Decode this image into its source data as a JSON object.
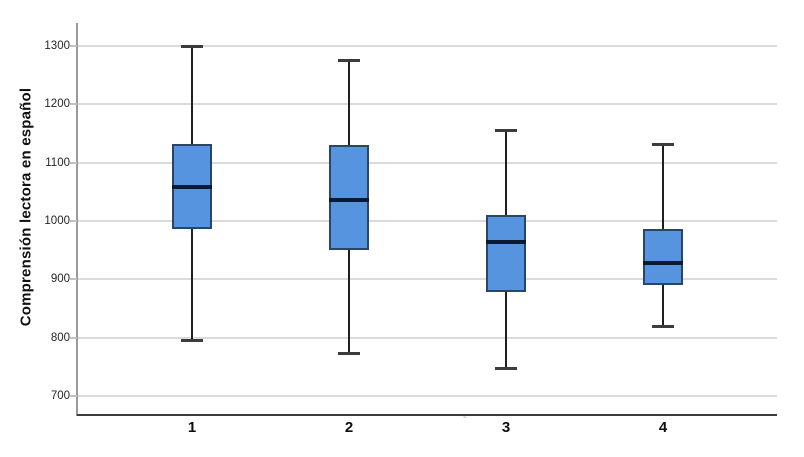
{
  "figure": {
    "background": "#ffffff",
    "stray_mark": "`"
  },
  "chart_data": {
    "type": "boxplot",
    "title": "",
    "xlabel": "",
    "ylabel": "Comprensión lectora en español",
    "categories": [
      "1",
      "2",
      "3",
      "4"
    ],
    "yticks": [
      700,
      800,
      900,
      1000,
      1100,
      1200,
      1300
    ],
    "ylim": [
      661,
      1339
    ],
    "grid": "horizontal-only",
    "legend": "none",
    "series": [
      {
        "category": "1",
        "whisker_low": 795,
        "q1": 987,
        "median": 1059,
        "q3": 1132,
        "whisker_high": 1300
      },
      {
        "category": "2",
        "whisker_low": 773,
        "q1": 950,
        "median": 1036,
        "q3": 1130,
        "whisker_high": 1276
      },
      {
        "category": "3",
        "whisker_low": 748,
        "q1": 879,
        "median": 964,
        "q3": 1010,
        "whisker_high": 1156
      },
      {
        "category": "4",
        "whisker_low": 820,
        "q1": 890,
        "median": 928,
        "q3": 986,
        "whisker_high": 1132
      }
    ],
    "colors": {
      "box_fill": "#5694E0",
      "box_border": "#2B4568",
      "median": "#0B1A33",
      "whisker": "#1f1f1f",
      "cap": "#3c3c3c",
      "gridline": "#dbdbdb",
      "tick_mark": "#c0c0c0",
      "y_axis": "#9a9a9a",
      "x_axis": "#3b3b3b",
      "text": "#111111"
    }
  }
}
